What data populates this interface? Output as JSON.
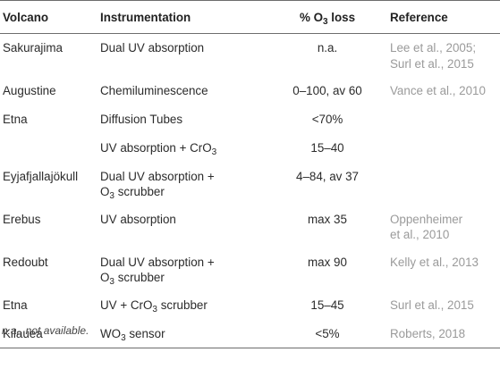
{
  "headers": {
    "volcano": "Volcano",
    "instrumentation": "Instrumentation",
    "loss_prefix": "% O",
    "loss_sub": "3",
    "loss_suffix": " loss",
    "reference": "Reference"
  },
  "rows": [
    {
      "volcano": "Sakurajima",
      "inst_1": "Dual UV absorption",
      "inst_2": "",
      "inst_sub": "",
      "inst_3": "",
      "loss": "n.a.",
      "ref_1": "Lee et al., 2005;",
      "ref_2": "Surl et al., 2015"
    },
    {
      "volcano": "Augustine",
      "inst_1": "Chemiluminescence",
      "inst_2": "",
      "inst_sub": "",
      "inst_3": "",
      "loss": "0–100, av 60",
      "ref_1": "Vance et al., 2010",
      "ref_2": ""
    },
    {
      "volcano": "Etna",
      "inst_1": "Diffusion Tubes",
      "inst_2": "",
      "inst_sub": "",
      "inst_3": "",
      "loss": "<70%",
      "ref_1": "",
      "ref_2": ""
    },
    {
      "volcano": "",
      "inst_1": "",
      "inst_2": "UV absorption + CrO",
      "inst_sub": "3",
      "inst_3": "",
      "loss": "15–40",
      "ref_1": "",
      "ref_2": ""
    },
    {
      "volcano": "Eyjafjallajökull",
      "inst_1": "Dual UV absorption +",
      "inst_2": "O",
      "inst_sub": "3",
      "inst_3": " scrubber",
      "loss": "4–84, av 37",
      "ref_1": "",
      "ref_2": ""
    },
    {
      "volcano": "Erebus",
      "inst_1": "UV absorption",
      "inst_2": "",
      "inst_sub": "",
      "inst_3": "",
      "loss": "max 35",
      "ref_1": "Oppenheimer",
      "ref_2": "et al., 2010"
    },
    {
      "volcano": "Redoubt",
      "inst_1": "Dual UV absorption +",
      "inst_2": "O",
      "inst_sub": "3",
      "inst_3": " scrubber",
      "loss": "max 90",
      "ref_1": "Kelly et al., 2013",
      "ref_2": ""
    },
    {
      "volcano": "Etna",
      "inst_1": "",
      "inst_2": "UV + CrO",
      "inst_sub": "3",
      "inst_3": " scrubber",
      "loss": "15–45",
      "ref_1": "Surl et al., 2015",
      "ref_2": ""
    },
    {
      "volcano": "Kilauea",
      "inst_1": "",
      "inst_2": "WO",
      "inst_sub": "3",
      "inst_3": " sensor",
      "loss": "<5%",
      "ref_1": "Roberts, 2018",
      "ref_2": ""
    }
  ],
  "footnote": "n.a., not available."
}
